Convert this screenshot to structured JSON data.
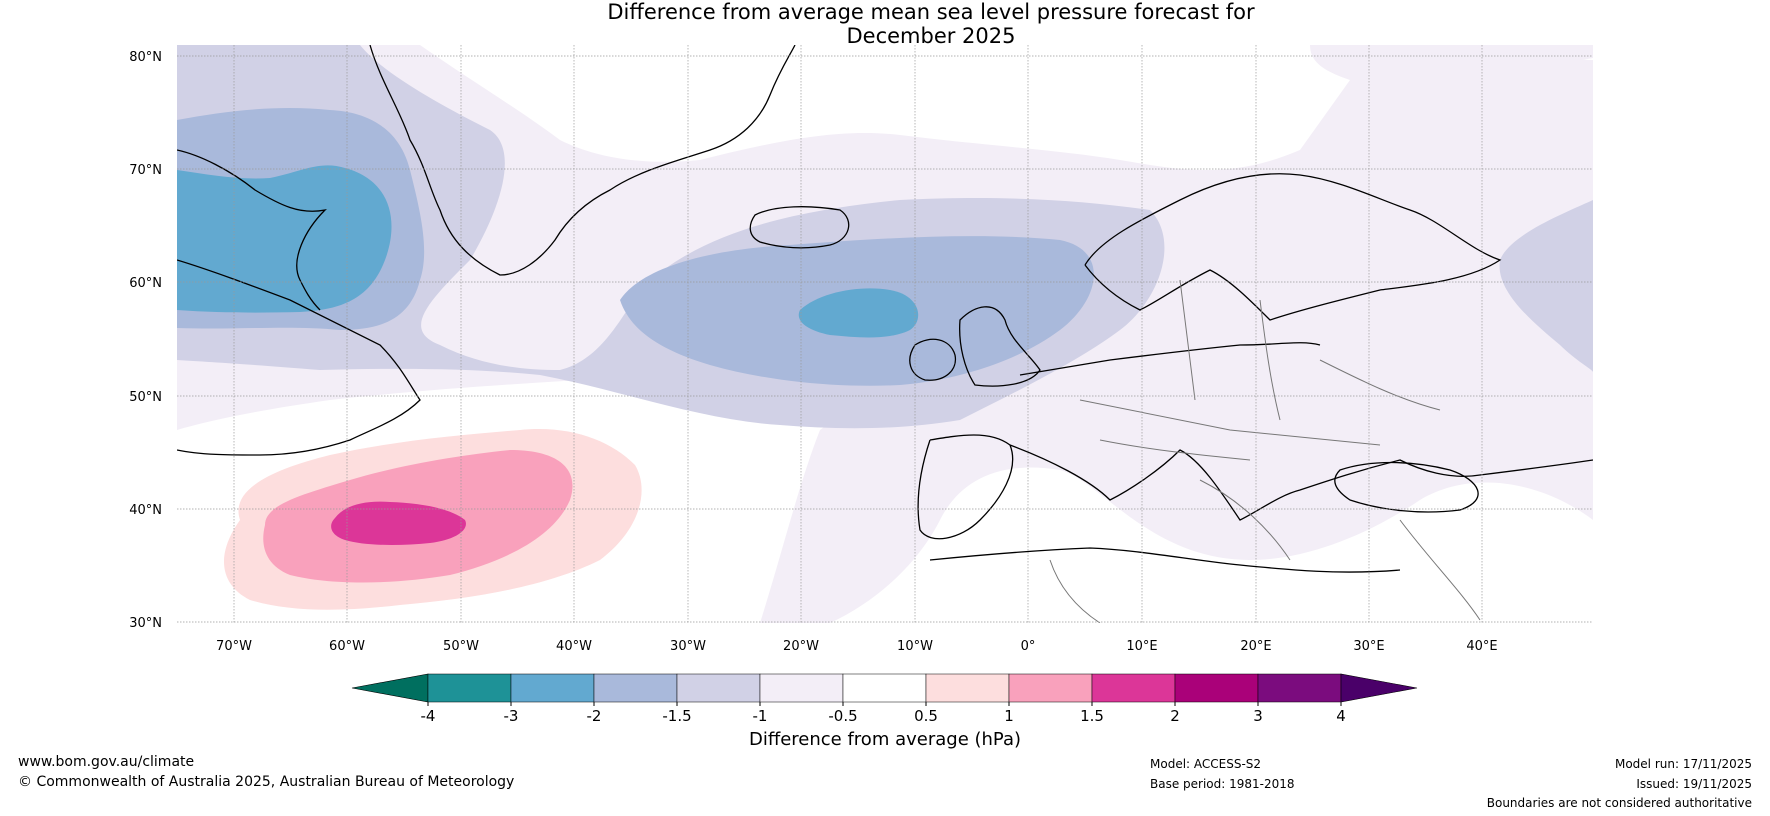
{
  "title": {
    "line1": "Difference from average mean sea level pressure forecast for",
    "line2": "December 2025"
  },
  "map": {
    "lat_labels": [
      "80°N",
      "70°N",
      "60°N",
      "50°N",
      "40°N",
      "30°N"
    ],
    "lon_labels": [
      "70°W",
      "60°W",
      "50°W",
      "40°W",
      "30°W",
      "20°W",
      "10°W",
      "0°",
      "10°E",
      "20°E",
      "30°E",
      "40°E"
    ],
    "regions": [
      "north-atlantic-low-anomaly",
      "canada-baffin-low-anomaly",
      "central-atlantic-high-anomaly",
      "europe-neutral",
      "mediterranean-weak-low"
    ]
  },
  "colorbar": {
    "labels": [
      "-4",
      "-3",
      "-2",
      "-1.5",
      "-1",
      "-0.5",
      "0.5",
      "1",
      "1.5",
      "2",
      "3",
      "4"
    ],
    "colors": [
      "#1e9297",
      "#62a9d0",
      "#a9b9db",
      "#d1d1e6",
      "#f3eef7",
      "#ffffff",
      "#fddede",
      "#f9a1bc",
      "#dc3698",
      "#aa0179",
      "#7b0c7e"
    ],
    "low_extend_color": "#006f5f",
    "high_extend_color": "#4a0069",
    "caption": "Difference from average (hPa)"
  },
  "footer": {
    "website": "www.bom.gov.au/climate",
    "copyright": "© Commonwealth of Australia 2025, Australian Bureau of Meteorology",
    "model": "Model: ACCESS-S2",
    "base_period": "Base period: 1981-2018",
    "model_run": "Model run: 17/11/2025",
    "issued": "Issued: 19/11/2025",
    "disclaimer": "Boundaries are not considered authoritative"
  },
  "colors": {
    "gridline": "#999999",
    "coastline": "#000000",
    "border": "#777777"
  }
}
